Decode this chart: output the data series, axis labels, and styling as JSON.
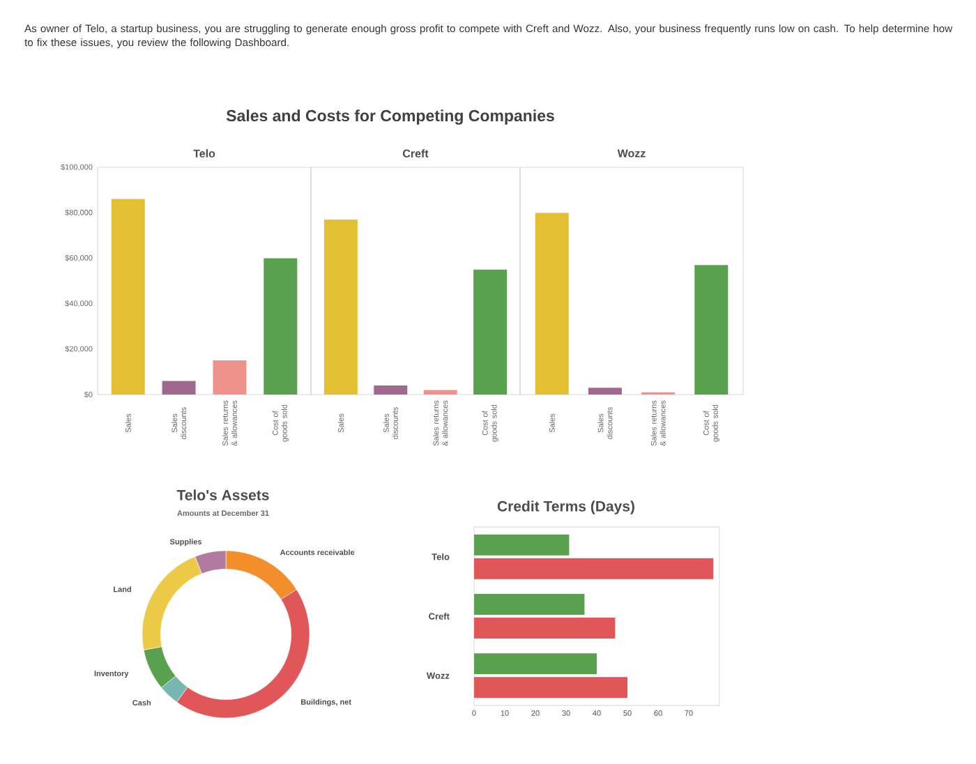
{
  "chart_data": [
    {
      "type": "bar",
      "title": "Sales and Costs for Competing Companies",
      "subtitle": "Telo",
      "annotations": [
        "As owner of Telo, a startup business, you are struggling to generate enough gross profit to compete with Creft and Wozz. Also, your business frequently runs low on cash. To help determine how to fix these issues, you review the following Dashboard."
      ],
      "categories": [
        "Sales",
        "Sales discounts",
        "Sales returns & allowances",
        "Cost of goods sold"
      ],
      "values": [
        86000,
        6000,
        15000,
        60000
      ],
      "colors": [
        "#e2c032",
        "#a0688f",
        "#f0928c",
        "#59a14f"
      ],
      "ylim": [
        0,
        100000
      ],
      "yticks": [
        {
          "value": 0,
          "label": "$0"
        },
        {
          "value": 20000,
          "label": "$20,000"
        },
        {
          "value": 40000,
          "label": "$40,000"
        },
        {
          "value": 60000,
          "label": "$60,000"
        },
        {
          "value": 80000,
          "label": "$80,000"
        },
        {
          "value": 100000,
          "label": "$100,000"
        }
      ]
    },
    {
      "type": "bar",
      "subtitle": "Creft",
      "categories": [
        "Sales",
        "Sales discounts",
        "Sales returns & allowances",
        "Cost of goods sold"
      ],
      "values": [
        77000,
        4000,
        2000,
        55000
      ],
      "colors": [
        "#e2c032",
        "#a0688f",
        "#f0928c",
        "#59a14f"
      ],
      "ylim": [
        0,
        100000
      ],
      "tick_labels": "x"
    },
    {
      "type": "bar",
      "subtitle": "Wozz",
      "categories": [
        "Sales",
        "Sales discounts",
        "Sales returns & allowances",
        "Cost of goods sold"
      ],
      "values": [
        80000,
        3000,
        1000,
        57000
      ],
      "colors": [
        "#e2c032",
        "#a0688f",
        "#f0928c",
        "#59a14f"
      ],
      "ylim": [
        0,
        100000
      ],
      "tick_labels": "x"
    },
    {
      "type": "donut",
      "title": "Telo's Assets",
      "subtitle": "Amounts at December 31",
      "categories": [
        "Accounts receivable",
        "Buildings, net",
        "Cash",
        "Inventory",
        "Land",
        "Supplies"
      ],
      "values": [
        16,
        44,
        4,
        8,
        22,
        6
      ],
      "colors": [
        "#f28e2b",
        "#e15759",
        "#76b7b2",
        "#59a14f",
        "#edc948",
        "#b07aa1"
      ]
    },
    {
      "type": "bar",
      "orientation": "horizontal",
      "title": "Credit Terms (Days)",
      "categories": [
        "Telo",
        "Creft",
        "Wozz"
      ],
      "series": [
        {
          "color": "#59a14f",
          "values": [
            31,
            36,
            40
          ]
        },
        {
          "color": "#e15759",
          "values": [
            78,
            46,
            50
          ]
        }
      ],
      "xlim": [
        0,
        80
      ],
      "xticks": [
        0,
        10,
        20,
        30,
        40,
        50,
        60,
        70
      ]
    }
  ]
}
